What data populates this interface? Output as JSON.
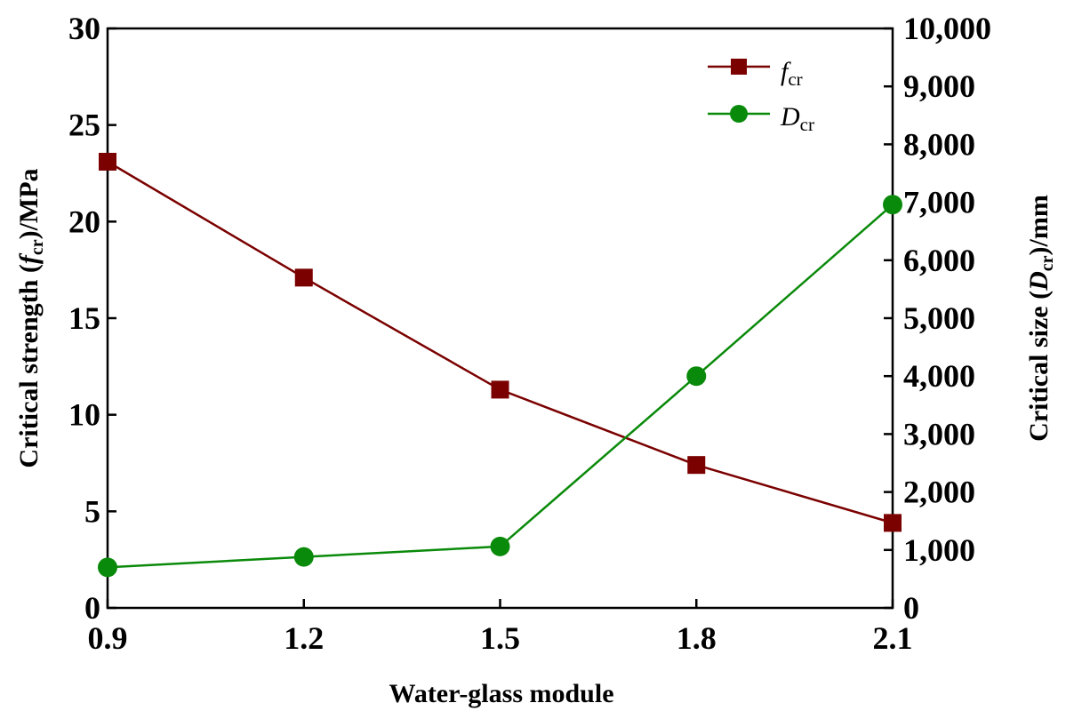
{
  "chart_data": {
    "type": "line",
    "x": [
      0.9,
      1.2,
      1.5,
      1.8,
      2.1
    ],
    "xticks": [
      "0.9",
      "1.2",
      "1.5",
      "1.8",
      "2.1"
    ],
    "xlim": [
      0.9,
      2.1
    ],
    "xlabel": "Water-glass module",
    "ylim_left": [
      0,
      30
    ],
    "yticks_left": [
      "0",
      "5",
      "10",
      "15",
      "20",
      "25",
      "30"
    ],
    "ylabel_left": {
      "prefix": "Critical strength (",
      "symbol": "f",
      "sub": "cr",
      "suffix": ")/MPa"
    },
    "ylim_right": [
      0,
      10000
    ],
    "yticks_right": [
      "0",
      "1,000",
      "2,000",
      "3,000",
      "4,000",
      "5,000",
      "6,000",
      "7,000",
      "8,000",
      "9,000",
      "10,000"
    ],
    "ylabel_right": {
      "prefix": "Critical size (",
      "symbol": "D",
      "sub": "cr",
      "suffix": ")/mm"
    },
    "series": [
      {
        "name": "f_cr",
        "symbol": "f",
        "sub": "cr",
        "axis": "left",
        "marker": "square",
        "color": "#7b0000",
        "values": [
          23.1,
          17.1,
          11.3,
          7.4,
          4.4
        ]
      },
      {
        "name": "D_cr",
        "symbol": "D",
        "sub": "cr",
        "axis": "right",
        "marker": "circle",
        "color": "#0a8a0a",
        "values": [
          700,
          880,
          1060,
          4000,
          6960
        ]
      }
    ],
    "legend_position": "top-right"
  }
}
